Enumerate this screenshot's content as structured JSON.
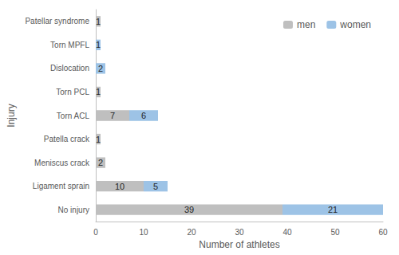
{
  "chart_data": {
    "type": "bar",
    "orientation": "horizontal",
    "stacked": true,
    "data_labels": true,
    "grid": false,
    "legend": "upper right",
    "x_label": "Number of athletes",
    "y_label": "Injury",
    "categories": [
      "No injury",
      "Ligament sprain",
      "Meniscus crack",
      "Patella crack",
      "Torn ACL",
      "Torn PCL",
      "Dislocation",
      "Torn MPFL",
      "Patellar syndrome"
    ],
    "series": [
      {
        "name": "men",
        "color": "#bfbfbf",
        "values": [
          39,
          10,
          2,
          1,
          7,
          1,
          null,
          null,
          1
        ]
      },
      {
        "name": "women",
        "color": "#9dc3e6",
        "values": [
          21,
          5,
          null,
          null,
          6,
          null,
          2,
          1,
          null
        ]
      }
    ],
    "xlim": [
      0,
      60
    ],
    "xticks": [
      0,
      10,
      20,
      30,
      40,
      50,
      60
    ]
  }
}
